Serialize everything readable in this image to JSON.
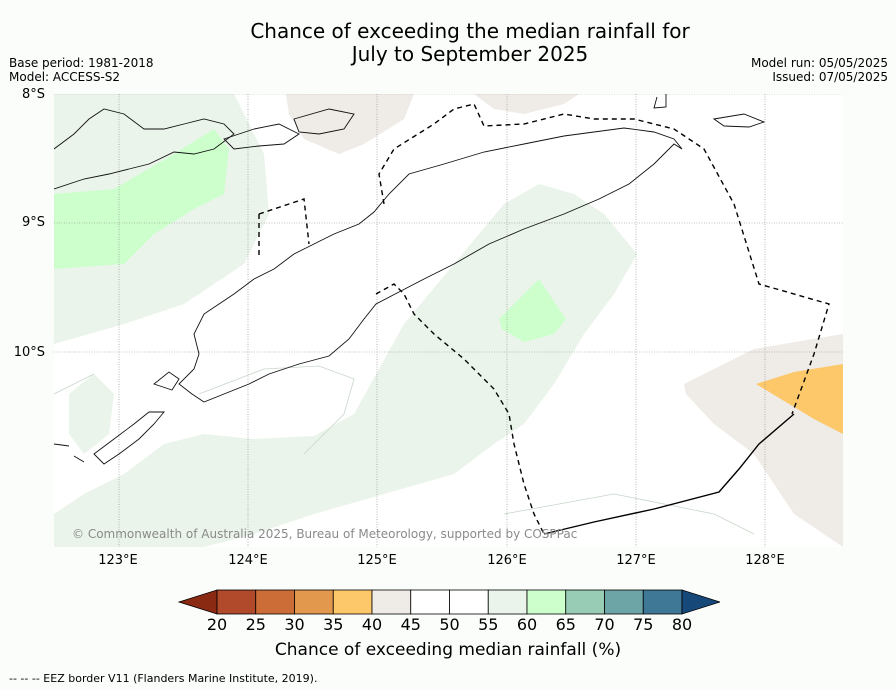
{
  "title_line1": "Chance of exceeding the median rainfall for",
  "title_line2": "July to September 2025",
  "base_period": "Base period: 1981-2018",
  "model": "Model: ACCESS-S2",
  "model_run": "Model run: 05/05/2025",
  "issued": "Issued: 07/05/2025",
  "lat_labels": [
    "8°S",
    "9°S",
    "10°S"
  ],
  "lon_labels": [
    "123°E",
    "124°E",
    "125°E",
    "126°E",
    "127°E",
    "128°E"
  ],
  "copyright": "© Commonwealth of Australia 2025, Bureau of Meteorology, supported by COSPPac",
  "colorbar": {
    "title": "Chance of exceeding median rainfall (%)",
    "ticks": [
      "20",
      "25",
      "30",
      "35",
      "40",
      "45",
      "50",
      "55",
      "60",
      "65",
      "70",
      "75",
      "80"
    ],
    "colors": [
      "#8b2a12",
      "#b04a2b",
      "#cc6d38",
      "#e2984d",
      "#fcc86a",
      "#efebe6",
      "#ffffff",
      "#ffffff",
      "#eaf4ea",
      "#ccffcc",
      "#99ccb5",
      "#6da4a6",
      "#3f7796",
      "#16497a"
    ]
  },
  "footnote": "--  --  -- EEZ border V11 (Flanders Marine Institute, 2019)."
}
